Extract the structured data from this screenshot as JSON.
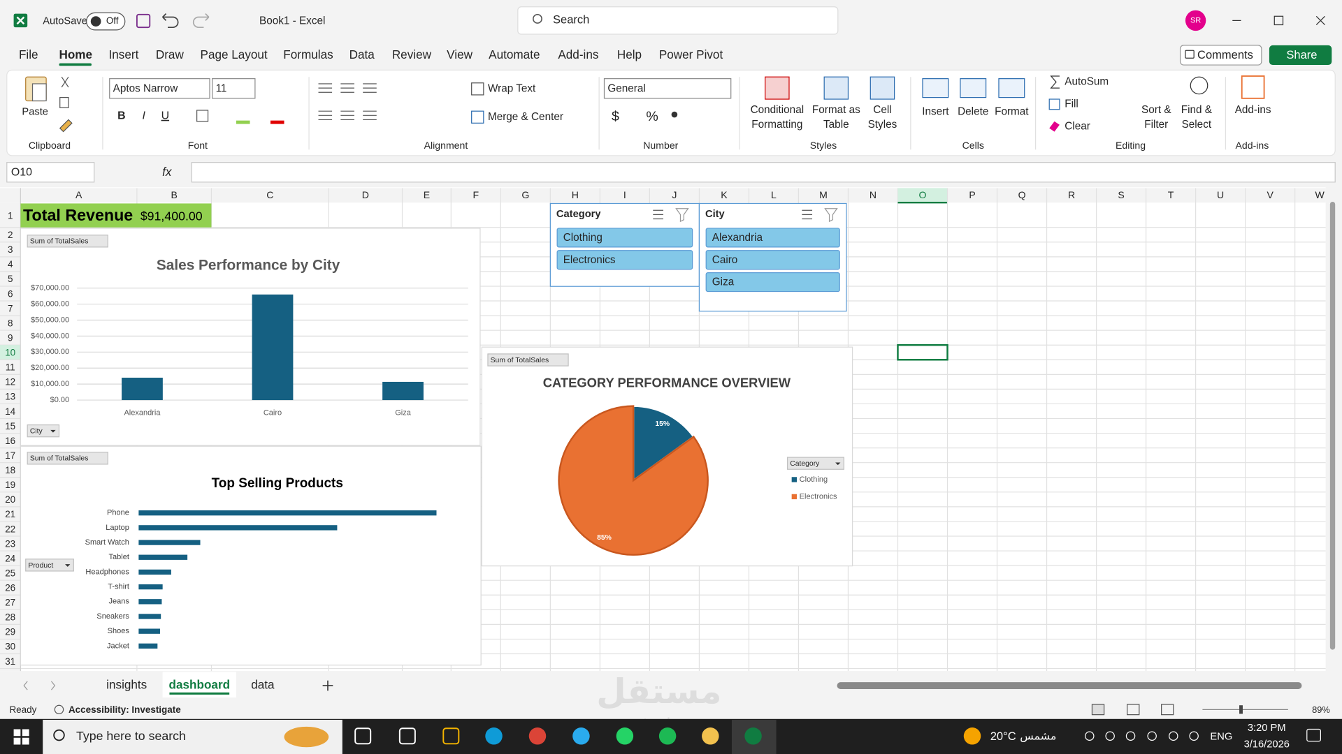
{
  "titlebar": {
    "autosave": "AutoSave",
    "autosave_state": "Off",
    "doc_title": "Book1  -  Excel",
    "search": "Search",
    "avatar": "SR"
  },
  "tabs": [
    "File",
    "Home",
    "Insert",
    "Draw",
    "Page Layout",
    "Formulas",
    "Data",
    "Review",
    "View",
    "Automate",
    "Add-ins",
    "Help",
    "Power Pivot"
  ],
  "comments": "Comments",
  "share": "Share",
  "ribbon": {
    "clipboard": {
      "label": "Clipboard",
      "paste": "Paste"
    },
    "font": {
      "label": "Font",
      "font_name": "Aptos Narrow",
      "font_size": "11",
      "styles": [
        "B",
        "I",
        "U"
      ]
    },
    "alignment": {
      "label": "Alignment",
      "wrap_text": "Wrap Text",
      "merge": "Merge & Center"
    },
    "number": {
      "label": "Number",
      "format": "General",
      "symbols": [
        "$",
        "%"
      ]
    },
    "styles": {
      "label": "Styles",
      "buttons": [
        [
          "Conditional",
          "Formatting"
        ],
        [
          "Format as",
          "Table"
        ],
        [
          "Cell",
          "Styles"
        ]
      ]
    },
    "cells": {
      "label": "Cells",
      "buttons": [
        "Insert",
        "Delete",
        "Format"
      ]
    },
    "editing": {
      "label": "Editing",
      "small": [
        "AutoSum",
        "Fill",
        "Clear"
      ],
      "buttons": [
        [
          "Sort &",
          "Filter"
        ],
        [
          "Find &",
          "Select"
        ]
      ]
    },
    "addins": {
      "label": "Add-ins",
      "button": "Add-ins"
    }
  },
  "formula_bar": {
    "name_box": "O10",
    "fx": "fx"
  },
  "sheet": {
    "columns": [
      "A",
      "B",
      "C",
      "D",
      "E",
      "F",
      "G",
      "H",
      "I",
      "J",
      "K",
      "L",
      "M",
      "N",
      "O",
      "P",
      "Q",
      "R",
      "S",
      "T",
      "U",
      "V",
      "W"
    ],
    "rows": [
      1,
      2,
      3,
      4,
      5,
      6,
      7,
      8,
      9,
      10,
      11,
      12,
      13,
      14,
      15,
      16,
      17,
      18,
      19,
      20,
      21,
      22,
      23,
      24,
      25,
      26,
      27,
      28,
      29,
      30,
      31
    ],
    "total_label": "Total Revenue",
    "total_value": "$91,400.00"
  },
  "city_chart": {
    "type": "bar",
    "field_button": "Sum of TotalSales",
    "title": "Sales Performance by City",
    "categories": [
      "Alexandria",
      "Cairo",
      "Giza"
    ],
    "values": [
      14000,
      66000,
      11400
    ],
    "color": "#156082",
    "ylim": [
      0,
      70000
    ],
    "yticks": [
      {
        "value": 0,
        "label": "$0.00"
      },
      {
        "value": 10000,
        "label": "$10,000.00"
      },
      {
        "value": 20000,
        "label": "$20,000.00"
      },
      {
        "value": 30000,
        "label": "$30,000.00"
      },
      {
        "value": 40000,
        "label": "$40,000.00"
      },
      {
        "value": 50000,
        "label": "$50,000.00"
      },
      {
        "value": 60000,
        "label": "$60,000.00"
      },
      {
        "value": 70000,
        "label": "$70,000.00"
      }
    ],
    "grid": true,
    "axis_button": "City"
  },
  "product_chart": {
    "type": "barh",
    "field_button": "Sum of TotalSales",
    "title": "Top Selling Products",
    "categories": [
      "Phone",
      "Laptop",
      "Smart Watch",
      "Tablet",
      "Headphones",
      "T-shirt",
      "Jeans",
      "Sneakers",
      "Shoes",
      "Jacket"
    ],
    "values": [
      36350,
      24230,
      7520,
      5950,
      3970,
      2925,
      2820,
      2715,
      2610,
      2300
    ],
    "color": "#156082",
    "axis_button": "Product"
  },
  "category_chart": {
    "type": "pie",
    "field_button": "Sum of TotalSales",
    "title": "CATEGORY PERFORMANCE OVERVIEW",
    "categories": [
      "Clothing",
      "Electronics"
    ],
    "values": [
      15,
      85
    ],
    "value_labels": [
      "15%",
      "85%"
    ],
    "colors": [
      "#156082",
      "#e97132"
    ],
    "legend_title": "Category"
  },
  "slicers": [
    {
      "title": "Category",
      "items": [
        "Clothing",
        "Electronics"
      ]
    },
    {
      "title": "City",
      "items": [
        "Alexandria",
        "Cairo",
        "Giza"
      ]
    }
  ],
  "sheet_tabs": [
    "insights",
    "dashboard",
    "data"
  ],
  "status": {
    "ready": "Ready",
    "accessibility": "Accessibility: Investigate",
    "zoom": "89%"
  },
  "watermark": {
    "word": "مستقل",
    "site": "mostaql.com"
  },
  "taskbar": {
    "search": "Type here to search",
    "temperature": "20°C",
    "weather": "مشمس",
    "lang": "ENG",
    "time": "3:20 PM",
    "date": "3/16/2026"
  }
}
